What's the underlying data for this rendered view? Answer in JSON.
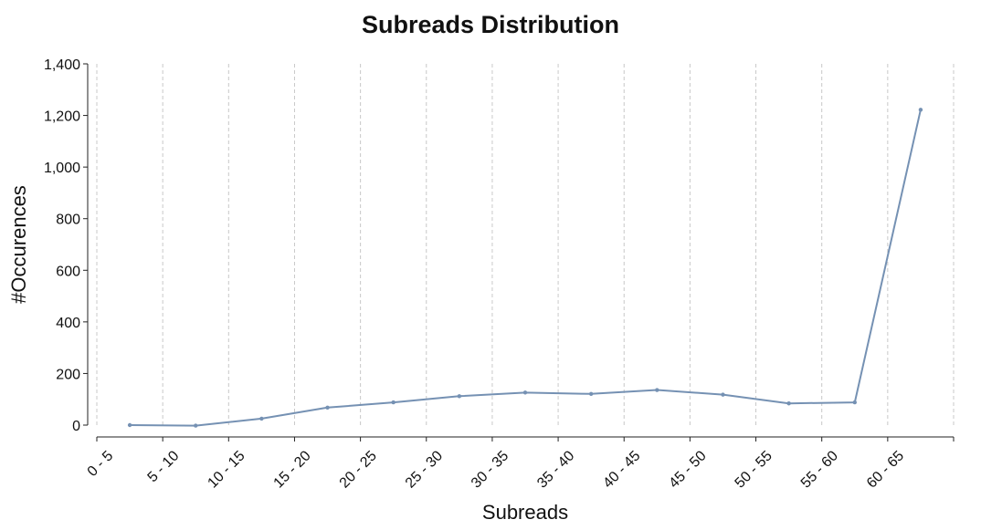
{
  "chart_data": {
    "type": "line",
    "title": "Subreads Distribution",
    "xlabel": "Subreads",
    "ylabel": "#Occurences",
    "categories": [
      "0 - 5",
      "5 - 10",
      "10 - 15",
      "15 - 20",
      "20 - 25",
      "25 - 30",
      "30 - 35",
      "35 - 40",
      "40 - 45",
      "45 - 50",
      "50 - 55",
      "55 - 60",
      "60 - 65"
    ],
    "series": [
      {
        "values": [
          0,
          -2,
          25,
          68,
          88,
          112,
          126,
          121,
          136,
          118,
          84,
          88,
          1222
        ],
        "color": "#7591b3"
      }
    ],
    "ylim": [
      0,
      1400
    ],
    "yticks": [
      0,
      200,
      400,
      600,
      800,
      1000,
      1200,
      1400
    ],
    "ytick_labels": [
      "0",
      "200",
      "400",
      "600",
      "800",
      "1,000",
      "1,200",
      "1,400"
    ],
    "grid": "vertical-dashed",
    "legend": "none"
  }
}
